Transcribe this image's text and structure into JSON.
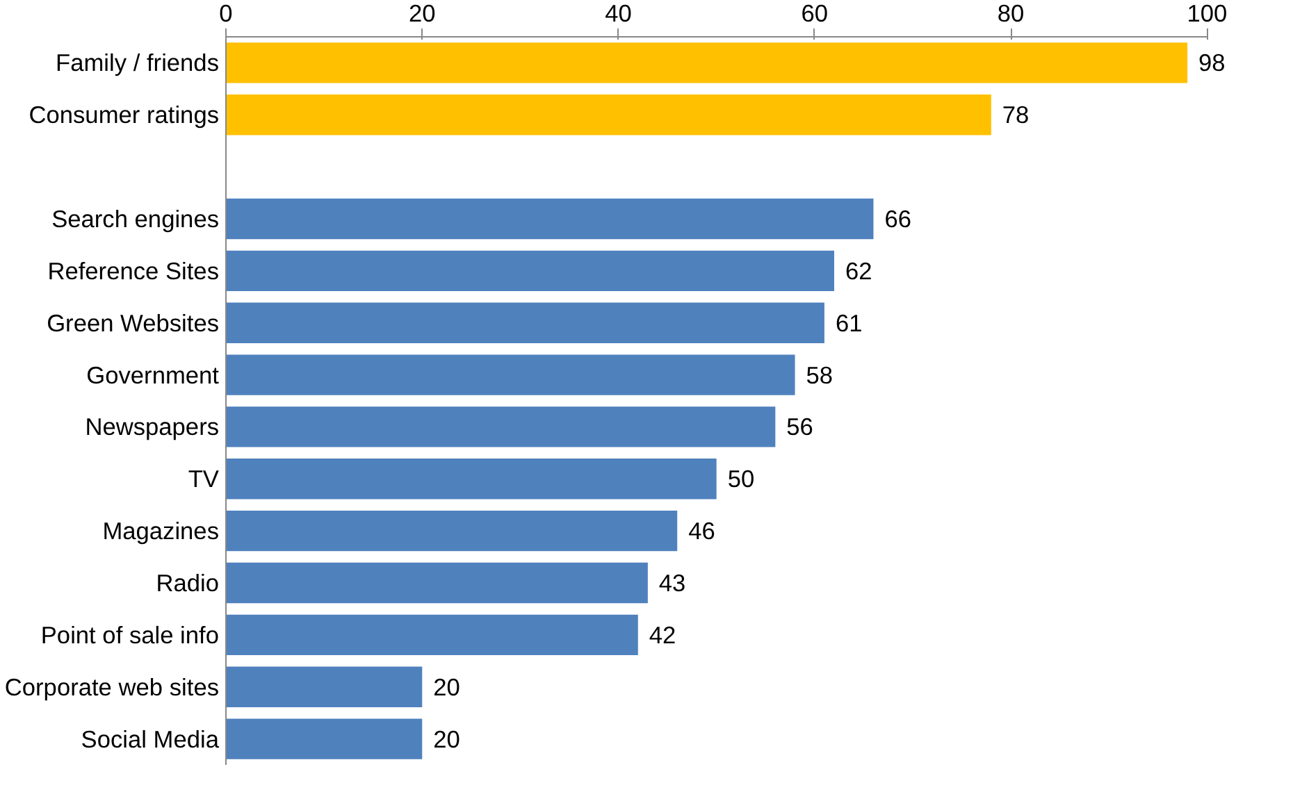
{
  "chart_data": {
    "type": "bar",
    "orientation": "horizontal",
    "categories": [
      "Family / friends",
      "Consumer ratings",
      null,
      "Search engines",
      "Reference Sites",
      "Green Websites",
      "Government",
      "Newspapers",
      "TV",
      "Magazines",
      "Radio",
      "Point of sale info",
      "Corporate web sites",
      "Social Media"
    ],
    "values": [
      98,
      78,
      null,
      66,
      62,
      61,
      58,
      56,
      50,
      46,
      43,
      42,
      20,
      20
    ],
    "colors": [
      "#ffc000",
      "#ffc000",
      "#4f81bd",
      "#4f81bd",
      "#4f81bd",
      "#4f81bd",
      "#4f81bd",
      "#4f81bd",
      "#4f81bd",
      "#4f81bd",
      "#4f81bd",
      "#4f81bd",
      "#4f81bd",
      "#4f81bd"
    ],
    "xlim": [
      0,
      100
    ],
    "xticks": [
      0,
      20,
      40,
      60,
      80,
      100
    ],
    "data_labels": true
  }
}
